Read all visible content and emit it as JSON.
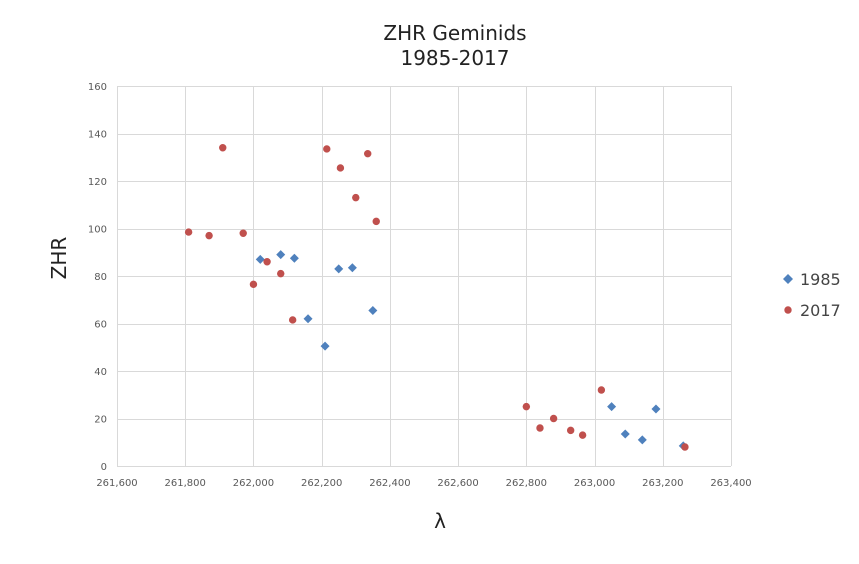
{
  "chart_data": {
    "type": "scatter",
    "title": [
      "ZHR Geminids",
      "1985-2017"
    ],
    "xlabel": "λ",
    "ylabel": "ZHR",
    "xlim": [
      261600,
      263400
    ],
    "ylim": [
      0,
      160
    ],
    "xticks": [
      261600,
      261800,
      262000,
      262200,
      262400,
      262600,
      262800,
      263000,
      263200,
      263400
    ],
    "xtick_labels": [
      "261,600",
      "261,800",
      "262,000",
      "262,200",
      "262,400",
      "262,600",
      "262,800",
      "263,000",
      "263,200",
      "263,400"
    ],
    "yticks": [
      0,
      20,
      40,
      60,
      80,
      100,
      120,
      140,
      160
    ],
    "ytick_labels": [
      "0",
      "20",
      "40",
      "60",
      "80",
      "100",
      "120",
      "140",
      "160"
    ],
    "grid": true,
    "legend_position": "right",
    "series": [
      {
        "name": "1985",
        "color": "#4f81bd",
        "marker": "diamond",
        "points": [
          [
            262020,
            87
          ],
          [
            262080,
            89
          ],
          [
            262120,
            87.5
          ],
          [
            262160,
            62
          ],
          [
            262210,
            50.5
          ],
          [
            262250,
            83
          ],
          [
            262290,
            83.5
          ],
          [
            262350,
            65.5
          ],
          [
            263050,
            25
          ],
          [
            263090,
            13.5
          ],
          [
            263140,
            11
          ],
          [
            263180,
            24
          ],
          [
            263260,
            8.5
          ]
        ]
      },
      {
        "name": "2017",
        "color": "#c0504d",
        "marker": "circle",
        "points": [
          [
            261810,
            98.5
          ],
          [
            261870,
            97
          ],
          [
            261910,
            134
          ],
          [
            261970,
            98
          ],
          [
            262000,
            76.5
          ],
          [
            262040,
            86
          ],
          [
            262080,
            81
          ],
          [
            262115,
            61.5
          ],
          [
            262215,
            133.5
          ],
          [
            262255,
            125.5
          ],
          [
            262300,
            113
          ],
          [
            262335,
            131.5
          ],
          [
            262360,
            103
          ],
          [
            262800,
            25
          ],
          [
            262840,
            16
          ],
          [
            262880,
            20
          ],
          [
            262930,
            15
          ],
          [
            262965,
            13
          ],
          [
            263020,
            32
          ],
          [
            263265,
            8
          ]
        ]
      }
    ]
  }
}
